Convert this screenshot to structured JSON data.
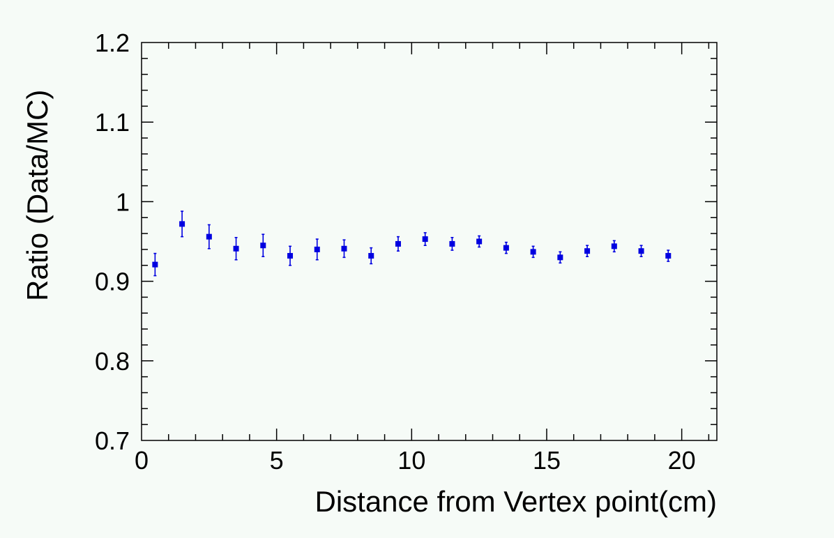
{
  "chart_data": {
    "type": "scatter",
    "title": "",
    "xlabel": "Distance from Vertex point(cm)",
    "ylabel": "Ratio (Data/MC)",
    "xlim": [
      0,
      21.3
    ],
    "ylim": [
      0.7,
      1.2
    ],
    "xticks": [
      0,
      5,
      10,
      15,
      20
    ],
    "xtick_labels": [
      "0",
      "5",
      "10",
      "15",
      "20"
    ],
    "yticks": [
      0.7,
      0.8,
      0.9,
      1.0,
      1.1,
      1.2
    ],
    "ytick_labels": [
      "0.7",
      "0.8",
      "0.9",
      "1",
      "1.1",
      "1.2"
    ],
    "grid": false,
    "marker_color": "#0000e0",
    "series": [
      {
        "x": [
          0.5,
          1.5,
          2.5,
          3.5,
          4.5,
          5.5,
          6.5,
          7.5,
          8.5,
          9.5,
          10.5,
          11.5,
          12.5,
          13.5,
          14.5,
          15.5,
          16.5,
          17.5,
          18.5,
          19.5
        ],
        "y": [
          0.921,
          0.972,
          0.956,
          0.941,
          0.945,
          0.932,
          0.94,
          0.941,
          0.932,
          0.947,
          0.953,
          0.947,
          0.95,
          0.942,
          0.937,
          0.93,
          0.938,
          0.944,
          0.938,
          0.932
        ],
        "yerr": [
          0.014,
          0.016,
          0.015,
          0.014,
          0.014,
          0.012,
          0.013,
          0.011,
          0.01,
          0.009,
          0.008,
          0.008,
          0.007,
          0.007,
          0.007,
          0.007,
          0.007,
          0.007,
          0.007,
          0.007
        ]
      }
    ]
  }
}
